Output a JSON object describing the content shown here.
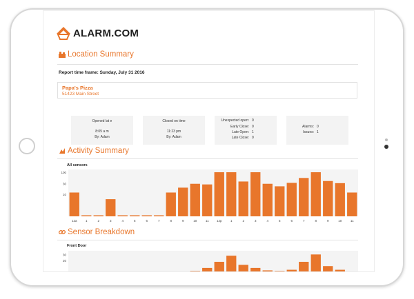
{
  "brand": {
    "name": "ALARM.COM",
    "accent": "#e8762b"
  },
  "sections": {
    "location_summary": "Location Summary",
    "activity_summary": "Activity Summary",
    "sensor_breakdown": "Sensor Breakdown"
  },
  "report": {
    "time_frame": "Report time frame: Sunday, July 31 2016"
  },
  "location": {
    "name": "Papa's Pizza",
    "address": "51423 Main Street"
  },
  "cards": {
    "opened": {
      "title": "Opened lat e",
      "time": "8:05 a m",
      "by": "By: Adam"
    },
    "closed": {
      "title": "Closed on time",
      "time": "11:23 pm",
      "by": "By: Adam"
    },
    "stats": [
      {
        "label": "Unexpected open:",
        "value": "0"
      },
      {
        "label": "Early Close:",
        "value": "0"
      },
      {
        "label": "Late Open:",
        "value": "1"
      },
      {
        "label": "Late Close:",
        "value": "0"
      }
    ],
    "alarms": {
      "label": "Alarms:",
      "value": "0"
    },
    "issues": {
      "label": "Issues:",
      "value": "1"
    }
  },
  "chart_data": [
    {
      "type": "bar",
      "title": "All sensors",
      "categories": [
        "12a",
        "1",
        "2",
        "3",
        "4",
        "5",
        "6",
        "7",
        "8",
        "9",
        "10",
        "11",
        "12p",
        "1",
        "2",
        "3",
        "4",
        "5",
        "6",
        "7",
        "8",
        "9",
        "10",
        "11"
      ],
      "values": [
        12,
        1,
        1,
        6,
        1,
        1,
        1,
        1,
        12,
        20,
        30,
        28,
        100,
        100,
        38,
        100,
        30,
        23,
        33,
        55,
        100,
        40,
        32,
        12
      ],
      "y_ticks": [
        "100",
        "30",
        "10"
      ],
      "scale": "log",
      "ylim": [
        1,
        100
      ],
      "bar_color": "#e8762b"
    },
    {
      "type": "bar",
      "title": "Front Door",
      "categories": [
        "12a",
        "1",
        "2",
        "3",
        "4",
        "5",
        "6",
        "7",
        "8",
        "9",
        "10",
        "11",
        "12p",
        "1",
        "2",
        "3",
        "4",
        "5",
        "6",
        "7",
        "8",
        "9",
        "10",
        "11"
      ],
      "values": [
        0,
        0,
        0,
        0,
        0,
        0,
        0,
        0,
        0,
        0,
        3,
        8,
        18,
        28,
        13,
        8,
        4,
        3,
        5,
        18,
        30,
        11,
        5,
        0
      ],
      "y_ticks": [
        "30",
        "20"
      ],
      "ylim": [
        0,
        36
      ],
      "bar_color": "#e8762b"
    }
  ]
}
